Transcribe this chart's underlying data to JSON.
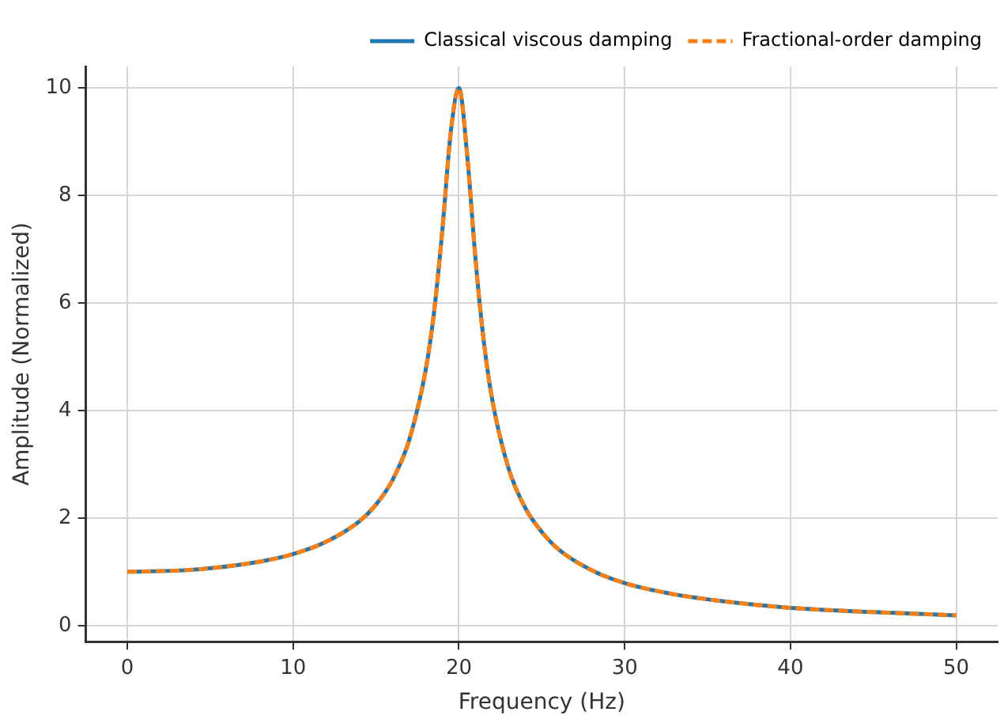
{
  "chart_data": {
    "type": "line",
    "xlabel": "Frequency (Hz)",
    "ylabel": "Amplitude (Normalized)",
    "x": [
      0,
      4,
      8,
      10,
      12,
      14,
      15,
      16,
      17,
      18,
      18.5,
      19,
      19.5,
      20,
      20.5,
      21,
      21.5,
      22,
      23,
      24,
      25,
      26,
      28,
      30,
      33,
      36,
      40,
      45,
      50
    ],
    "series": [
      {
        "name": "Classical viscous damping",
        "color": "#1f77b4",
        "line_style": "solid",
        "values": [
          1,
          1.04,
          1.19,
          1.33,
          1.56,
          1.94,
          2.25,
          2.71,
          3.45,
          4.76,
          5.83,
          7.35,
          9.15,
          10,
          8.75,
          6.82,
          5.29,
          4.22,
          2.92,
          2.19,
          1.74,
          1.42,
          1.03,
          0.79,
          0.58,
          0.45,
          0.33,
          0.25,
          0.19
        ]
      },
      {
        "name": "Fractional-order damping",
        "color": "#ff7f0e",
        "line_style": "dashed",
        "values": [
          1,
          1.04,
          1.19,
          1.33,
          1.56,
          1.94,
          2.25,
          2.71,
          3.45,
          4.76,
          5.83,
          7.35,
          9.15,
          10,
          8.75,
          6.82,
          5.29,
          4.22,
          2.92,
          2.19,
          1.74,
          1.42,
          1.03,
          0.79,
          0.58,
          0.45,
          0.33,
          0.25,
          0.19
        ]
      }
    ],
    "xlim": [
      -2.5,
      52.5
    ],
    "xticks": [
      0,
      10,
      20,
      30,
      40,
      50
    ],
    "ylim": [
      -0.3,
      10.4
    ],
    "yticks": [
      0,
      2,
      4,
      6,
      8,
      10
    ],
    "grid": true,
    "legend": "top right",
    "marker": "none"
  }
}
